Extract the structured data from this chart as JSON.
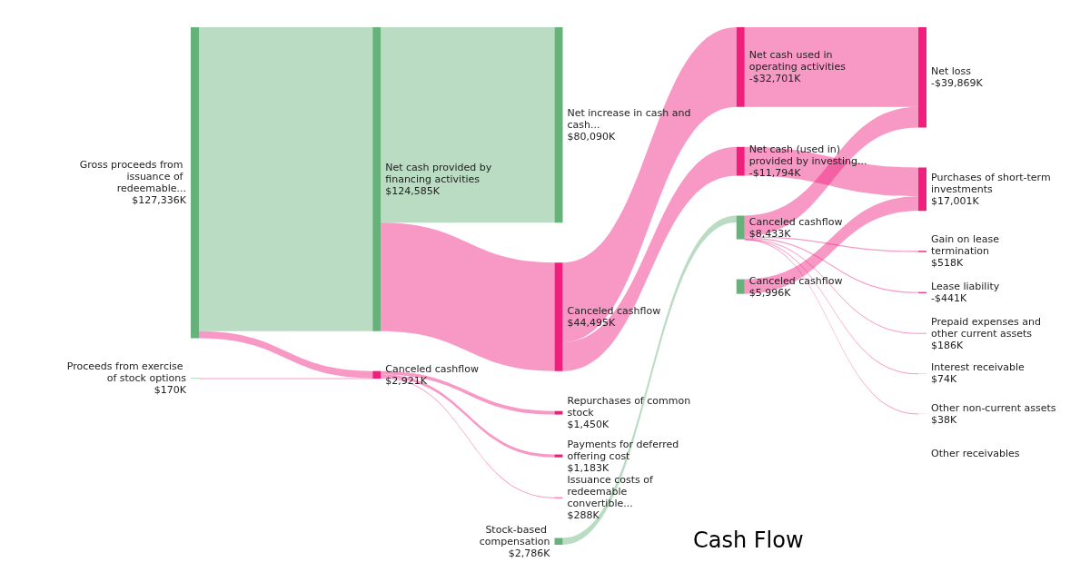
{
  "chart_data": {
    "type": "other",
    "title": "Cash Flow",
    "categories": [
      "Gross proceeds from issuance of redeemable...",
      "Proceeds from exercise of stock options",
      "Net cash provided by financing activities",
      "Canceled cashflow",
      "Net increase in cash and cash...",
      "Canceled cashflow",
      "Repurchases of common stock",
      "Payments for deferred offering cost",
      "Issuance costs of redeemable convertible...",
      "Stock-based compensation",
      "Net cash used in operating activities",
      "Net cash (used in) provided by investing...",
      "Canceled cashflow",
      "Canceled cashflow",
      "Net loss",
      "Purchases of short-term investments",
      "Gain on lease termination",
      "Lease liability",
      "Prepaid expenses and other current assets",
      "Interest receivable",
      "Other non-current assets",
      "Other receivables"
    ],
    "values": [
      127336,
      170,
      124585,
      2921,
      80090,
      44495,
      1450,
      1183,
      288,
      2786,
      -32701,
      -11794,
      8433,
      5996,
      -39869,
      17001,
      518,
      -441,
      186,
      74,
      38,
      null
    ],
    "value_labels": [
      "$127,336K",
      "$170K",
      "$124,585K",
      "$2,921K",
      "$80,090K",
      "$44,495K",
      "$1,450K",
      "$1,183K",
      "$288K",
      "$2,786K",
      "-$32,701K",
      "-$11,794K",
      "$8,433K",
      "$5,996K",
      "-$39,869K",
      "$17,001K",
      "$518K",
      "-$441K",
      "$186K",
      "$74K",
      "$38K",
      null
    ],
    "colors": [
      "#66b27a",
      "#66b27a",
      "#66b27a",
      "#f01f7e",
      "#66b27a",
      "#f01f7e",
      "#f01f7e",
      "#f01f7e",
      "#f01f7e",
      "#66b27a",
      "#f01f7e",
      "#f01f7e",
      "#66b27a",
      "#66b27a",
      "#f01f7e",
      "#f01f7e",
      "#f01f7e",
      "#f01f7e",
      "#f01f7e",
      "#f01f7e",
      "#f01f7e",
      "#f01f7e"
    ]
  }
}
